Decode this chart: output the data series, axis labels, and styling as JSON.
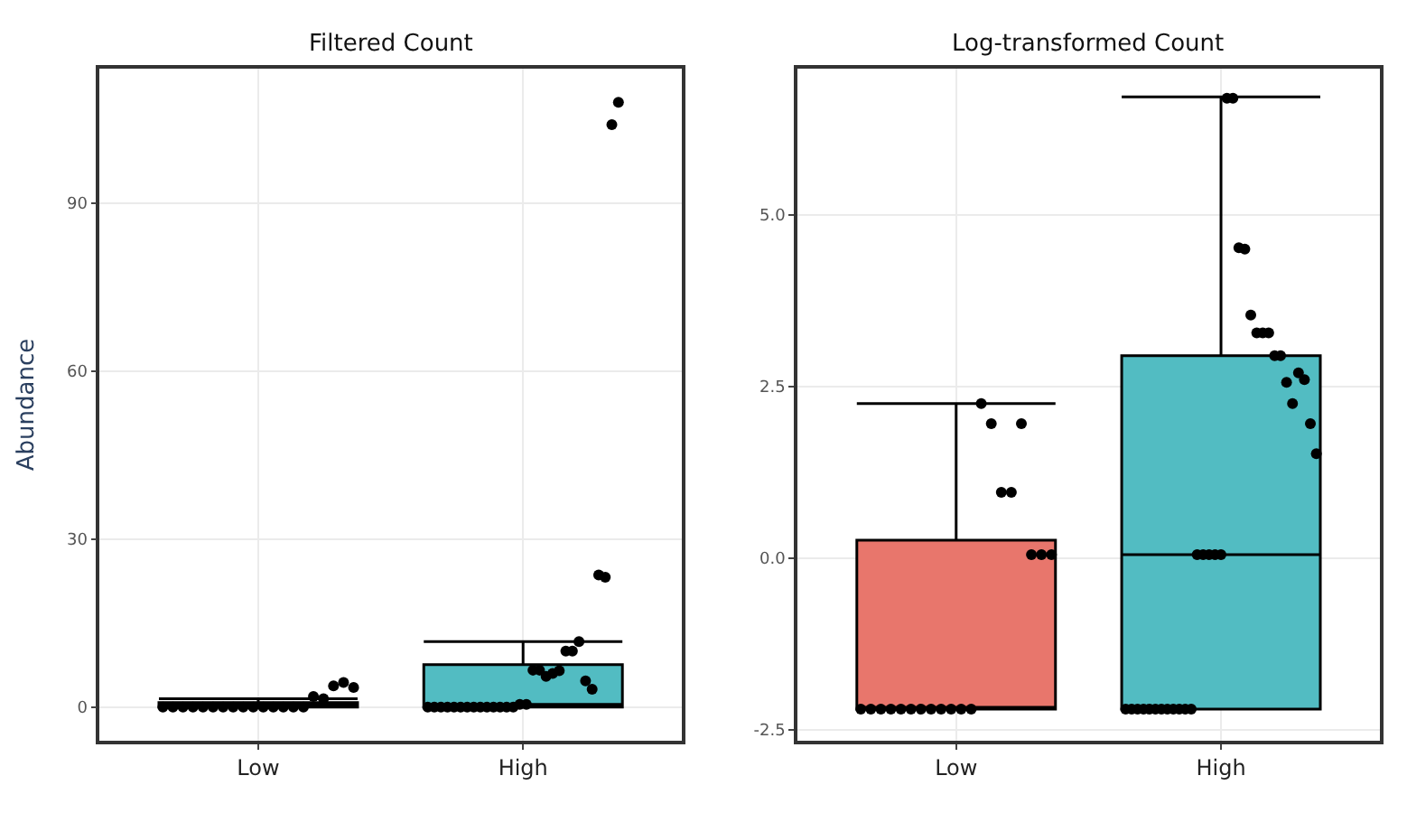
{
  "chart_data": [
    {
      "type": "box",
      "title": "Filtered Count",
      "ylabel": "Abundance",
      "categories": [
        "Low",
        "High"
      ],
      "colors": [
        "#e8766c",
        "#52bcc2"
      ],
      "boxes": [
        {
          "low": 0,
          "q1": 0,
          "median": 0,
          "q3": 0.8,
          "high": 1.5
        },
        {
          "low": 0,
          "q1": 0,
          "median": 0.5,
          "q3": 7.6,
          "high": 11.7
        }
      ],
      "series": [
        {
          "type": "scatter",
          "color": "#000000",
          "x": [
            "Low",
            "Low",
            "Low",
            "Low",
            "Low",
            "Low",
            "Low",
            "Low",
            "Low",
            "Low",
            "Low",
            "Low",
            "Low",
            "Low",
            "Low",
            "Low",
            "Low",
            "Low",
            "Low",
            "Low",
            "High",
            "High",
            "High",
            "High",
            "High",
            "High",
            "High",
            "High",
            "High",
            "High",
            "High",
            "High",
            "High",
            "High",
            "High",
            "High",
            "High",
            "High",
            "High",
            "High",
            "High",
            "High",
            "High",
            "High",
            "High",
            "High",
            "High",
            "High",
            "High",
            "High"
          ],
          "values": [
            0,
            0,
            0,
            0,
            0,
            0,
            0,
            0,
            0,
            0,
            0,
            0,
            0,
            0,
            0,
            1.9,
            1.5,
            3.8,
            4.4,
            3.5,
            0,
            0,
            0,
            0,
            0,
            0,
            0,
            0,
            0,
            0,
            0,
            0,
            0,
            0,
            0.5,
            0.5,
            6.6,
            6.6,
            5.5,
            6.0,
            6.5,
            10,
            10,
            11.7,
            4.7,
            3.2,
            23.6,
            23.2,
            104,
            108
          ]
        }
      ],
      "ylim": [
        -6,
        114
      ],
      "yticks": [
        0,
        30,
        60,
        90
      ],
      "grid": true,
      "marker": "circle"
    },
    {
      "type": "box",
      "title": "Log-transformed Count",
      "categories": [
        "Low",
        "High"
      ],
      "colors": [
        "#e8766c",
        "#52bcc2"
      ],
      "boxes": [
        {
          "low": -2.2,
          "q1": -2.2,
          "median": -2.2,
          "q3": 0.26,
          "high": 2.25
        },
        {
          "low": -2.2,
          "q1": -2.2,
          "median": 0.05,
          "q3": 2.95,
          "high": 6.72
        }
      ],
      "series": [
        {
          "type": "scatter",
          "color": "#000000",
          "x": [
            "Low",
            "Low",
            "Low",
            "Low",
            "Low",
            "Low",
            "Low",
            "Low",
            "Low",
            "Low",
            "Low",
            "Low",
            "Low",
            "Low",
            "Low",
            "Low",
            "Low",
            "Low",
            "Low",
            "Low",
            "High",
            "High",
            "High",
            "High",
            "High",
            "High",
            "High",
            "High",
            "High",
            "High",
            "High",
            "High",
            "High",
            "High",
            "High",
            "High",
            "High",
            "High",
            "High",
            "High",
            "High",
            "High",
            "High",
            "High",
            "High",
            "High",
            "High",
            "High",
            "High",
            "High",
            "High",
            "High",
            "High"
          ],
          "values": [
            -2.2,
            -2.2,
            -2.2,
            -2.2,
            -2.2,
            -2.2,
            -2.2,
            -2.2,
            -2.2,
            -2.2,
            -2.2,
            -2.2,
            2.25,
            1.96,
            0.96,
            0.96,
            1.96,
            0.05,
            0.05,
            0.05,
            -2.2,
            -2.2,
            -2.2,
            -2.2,
            -2.2,
            -2.2,
            -2.2,
            -2.2,
            -2.2,
            -2.2,
            -2.2,
            -2.2,
            0.05,
            0.05,
            0.05,
            0.05,
            0.05,
            6.7,
            6.7,
            4.52,
            4.5,
            3.54,
            3.28,
            3.28,
            3.28,
            2.95,
            2.95,
            2.56,
            2.25,
            2.7,
            2.6,
            1.96,
            1.52
          ]
        }
      ],
      "ylim": [
        -2.66,
        7.13
      ],
      "yticks": [
        {
          "value": -2.5,
          "label": "-2.5"
        },
        {
          "value": 0,
          "label": "0.0"
        },
        {
          "value": 2.5,
          "label": "2.5"
        },
        {
          "value": 5,
          "label": "5.0"
        }
      ],
      "grid": true,
      "marker": "circle"
    }
  ]
}
